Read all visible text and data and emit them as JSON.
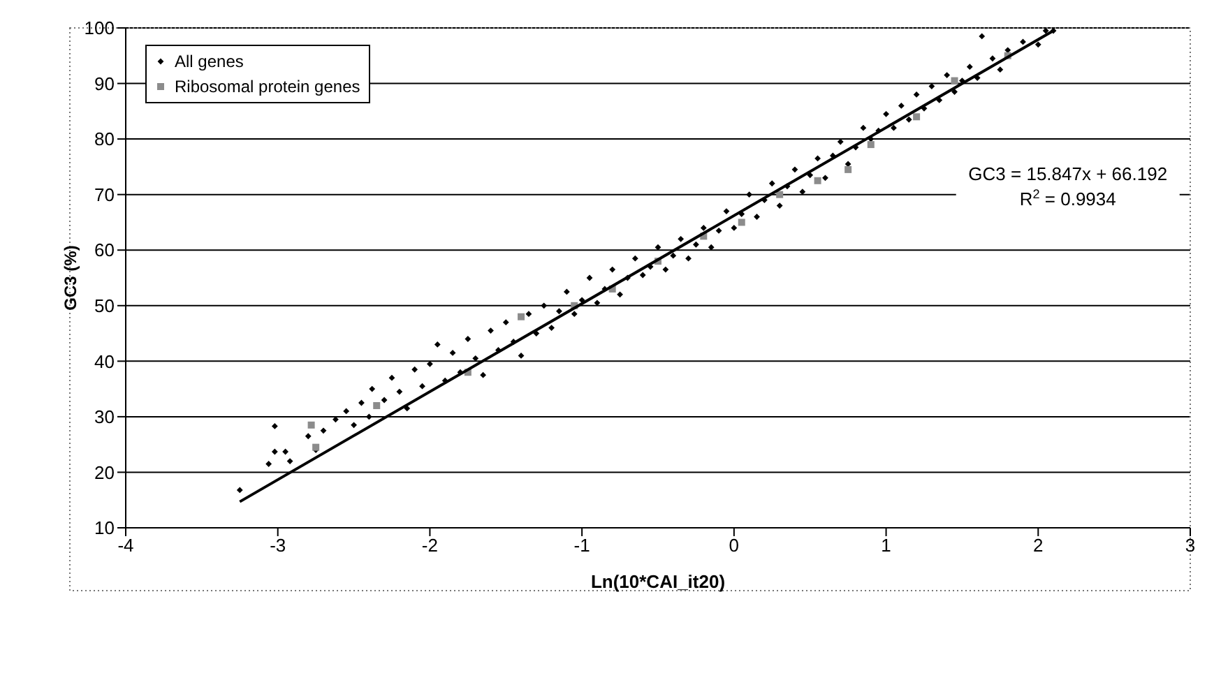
{
  "chart_data": {
    "type": "scatter",
    "xlabel": "Ln(10*CAI_it20)",
    "ylabel": "GC3 (%)",
    "xlim": [
      -4,
      3
    ],
    "xticks": [
      -4,
      -3,
      -2,
      -1,
      0,
      1,
      2,
      3
    ],
    "ylim": [
      10,
      100
    ],
    "yticks": [
      10,
      20,
      30,
      40,
      50,
      60,
      70,
      80,
      90,
      100
    ],
    "grid": "y",
    "legend": "top left",
    "annotations": [
      "GC3 = 15.847x + 66.192",
      "R$^{2}$ = 0.9934"
    ],
    "series": [
      {
        "name": "All genes",
        "color": "#000000",
        "marker": "diamond",
        "x": [
          -3.25,
          -3.06,
          -3.02,
          -3.02,
          -2.95,
          -2.92,
          -2.8,
          -2.75,
          -2.7,
          -2.62,
          -2.55,
          -2.5,
          -2.45,
          -2.4,
          -2.38,
          -2.3,
          -2.25,
          -2.2,
          -2.15,
          -2.1,
          -2.05,
          -2.0,
          -1.95,
          -1.9,
          -1.85,
          -1.8,
          -1.75,
          -1.7,
          -1.65,
          -1.6,
          -1.55,
          -1.5,
          -1.45,
          -1.4,
          -1.35,
          -1.3,
          -1.25,
          -1.2,
          -1.15,
          -1.1,
          -1.05,
          -1.0,
          -0.95,
          -0.9,
          -0.85,
          -0.8,
          -0.75,
          -0.7,
          -0.65,
          -0.6,
          -0.55,
          -0.5,
          -0.45,
          -0.4,
          -0.35,
          -0.3,
          -0.25,
          -0.2,
          -0.15,
          -0.1,
          -0.05,
          0.0,
          0.05,
          0.1,
          0.15,
          0.2,
          0.25,
          0.3,
          0.35,
          0.4,
          0.45,
          0.5,
          0.55,
          0.6,
          0.65,
          0.7,
          0.75,
          0.8,
          0.85,
          0.9,
          0.95,
          1.0,
          1.05,
          1.1,
          1.15,
          1.2,
          1.25,
          1.3,
          1.35,
          1.4,
          1.45,
          1.5,
          1.55,
          1.6,
          1.63,
          1.7,
          1.75,
          1.8,
          1.9,
          2.0,
          2.05,
          2.1
        ],
        "values": [
          16.8,
          21.5,
          28.3,
          23.7,
          23.7,
          22.0,
          26.5,
          24,
          27.5,
          29.5,
          31,
          28.5,
          32.5,
          30,
          35,
          33,
          37,
          34.5,
          31.5,
          38.5,
          35.5,
          39.5,
          43,
          36.5,
          41.5,
          38,
          44,
          40.5,
          37.5,
          45.5,
          42,
          47,
          43.5,
          41,
          48.5,
          45,
          50,
          46,
          49,
          52.5,
          48.5,
          51,
          55,
          50.5,
          53,
          56.5,
          52,
          55,
          58.5,
          55.5,
          57,
          60.5,
          56.5,
          59,
          62,
          58.5,
          61,
          64,
          60.5,
          63.5,
          67,
          64,
          66.5,
          70,
          66,
          69,
          72,
          68,
          71.5,
          74.5,
          70.5,
          73.5,
          76.5,
          73,
          77,
          79.5,
          75.5,
          78.5,
          82,
          80,
          81.5,
          84.5,
          82,
          86,
          83.5,
          88,
          85.5,
          89.5,
          87,
          91.5,
          88.5,
          90.5,
          93,
          91,
          98.5,
          94.5,
          92.5,
          96,
          97.5,
          97,
          99.5,
          99.5
        ]
      },
      {
        "name": "Ribosomal protein genes",
        "color": "#8c8c8c",
        "marker": "square",
        "x": [
          -2.78,
          -2.75,
          -2.35,
          -1.75,
          -1.4,
          -1.05,
          -0.8,
          -0.5,
          -0.2,
          0.05,
          0.3,
          0.55,
          0.75,
          0.9,
          1.2,
          1.45,
          1.8
        ],
        "values": [
          28.5,
          24.5,
          32,
          38,
          48,
          50,
          53,
          58,
          62.5,
          65,
          70,
          72.5,
          74.5,
          79,
          84,
          90.5,
          95
        ]
      },
      {
        "type": "line",
        "color": "#000000",
        "marker": "none",
        "x": [
          -3.25,
          2.1
        ],
        "values": [
          14.7,
          99.5
        ]
      }
    ]
  }
}
